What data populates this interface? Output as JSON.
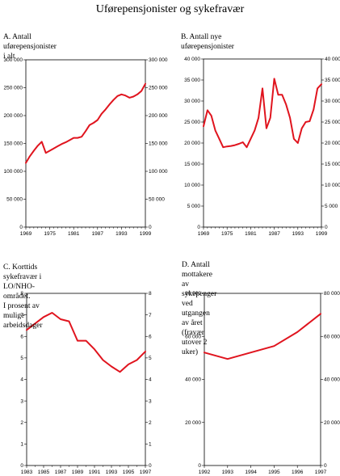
{
  "page": {
    "title": "Uførepensjonister og sykefravær"
  },
  "chart_data": [
    {
      "id": "A",
      "type": "line",
      "title": "A.  Antall uførepensjonister i alt",
      "color": "#e0141e",
      "ylim": [
        0,
        300000
      ],
      "yticks": [
        0,
        50000,
        100000,
        150000,
        200000,
        250000,
        300000
      ],
      "ytick_labels": [
        "0",
        "50 000",
        "100 000",
        "150 000",
        "200 000",
        "250 000",
        "300 000"
      ],
      "xlim": [
        1969,
        1999
      ],
      "xticks": [
        1969,
        1975,
        1981,
        1987,
        1993,
        1999
      ],
      "xtick_labels": [
        "1969",
        "1975",
        "1981",
        "1987",
        "1993",
        "1999"
      ],
      "x": [
        1969,
        1970,
        1971,
        1972,
        1973,
        1974,
        1975,
        1976,
        1977,
        1978,
        1979,
        1980,
        1981,
        1982,
        1983,
        1984,
        1985,
        1986,
        1987,
        1988,
        1989,
        1990,
        1991,
        1992,
        1993,
        1994,
        1995,
        1996,
        1997,
        1998,
        1999
      ],
      "values": [
        115000,
        127000,
        137000,
        146000,
        153000,
        133000,
        137000,
        141000,
        145000,
        149000,
        152000,
        156000,
        160000,
        160000,
        162000,
        172000,
        183000,
        187000,
        192000,
        203000,
        211000,
        220000,
        228000,
        235000,
        238000,
        236000,
        232000,
        234000,
        238000,
        244000,
        257000
      ]
    },
    {
      "id": "B",
      "type": "line",
      "title": "B.  Antall nye uførepensjonister",
      "color": "#e0141e",
      "ylim": [
        0,
        40000
      ],
      "yticks": [
        0,
        5000,
        10000,
        15000,
        20000,
        25000,
        30000,
        35000,
        40000
      ],
      "ytick_labels": [
        "0",
        "5 000",
        "10 000",
        "15 000",
        "20 000",
        "25 000",
        "30 000",
        "35 000",
        "40 000"
      ],
      "xlim": [
        1969,
        1999
      ],
      "xticks": [
        1969,
        1975,
        1981,
        1987,
        1993,
        1999
      ],
      "xtick_labels": [
        "1969",
        "1975",
        "1981",
        "1987",
        "1993",
        "1999"
      ],
      "x": [
        1969,
        1970,
        1971,
        1972,
        1973,
        1974,
        1975,
        1976,
        1977,
        1978,
        1979,
        1980,
        1981,
        1982,
        1983,
        1984,
        1985,
        1986,
        1987,
        1988,
        1989,
        1990,
        1991,
        1992,
        1993,
        1994,
        1995,
        1996,
        1997,
        1998,
        1999
      ],
      "values": [
        24000,
        27800,
        26500,
        23000,
        21000,
        19000,
        19200,
        19300,
        19500,
        19800,
        20200,
        19000,
        21000,
        23000,
        26000,
        33000,
        23500,
        26000,
        35300,
        31500,
        31500,
        29200,
        26000,
        21000,
        20000,
        23500,
        25000,
        25200,
        28000,
        33000,
        34000
      ]
    },
    {
      "id": "C",
      "type": "line",
      "title": "C.  Korttids sykefravær i LO/NHO-området.\n     I prosent av mulige arbeidsdager",
      "color": "#e0141e",
      "ylim": [
        0,
        8
      ],
      "yticks": [
        0,
        1,
        2,
        3,
        4,
        5,
        6,
        7,
        8
      ],
      "ytick_labels": [
        "0",
        "1",
        "2",
        "3",
        "4",
        "5",
        "6",
        "7",
        "8"
      ],
      "xlim": [
        1983,
        1997
      ],
      "xticks": [
        1983,
        1985,
        1987,
        1989,
        1991,
        1993,
        1995,
        1997
      ],
      "xtick_labels": [
        "1983",
        "1985",
        "1987",
        "1989",
        "1991",
        "1993",
        "1995",
        "1997"
      ],
      "x": [
        1983,
        1984,
        1985,
        1986,
        1987,
        1988,
        1989,
        1990,
        1991,
        1992,
        1993,
        1994,
        1995,
        1996,
        1997
      ],
      "values": [
        6.3,
        6.6,
        6.9,
        7.1,
        6.8,
        6.7,
        5.8,
        5.8,
        5.4,
        4.9,
        4.6,
        4.35,
        4.7,
        4.9,
        5.3
      ]
    },
    {
      "id": "D",
      "type": "line",
      "title": "D.  Antall mottakere av sykepenger ved\n     utgangen av året (fravær utover 2 uker)",
      "color": "#e0141e",
      "ylim": [
        0,
        80000
      ],
      "yticks": [
        0,
        20000,
        40000,
        60000,
        80000
      ],
      "ytick_labels": [
        "0",
        "20 000",
        "40 000",
        "60 000",
        "80 000"
      ],
      "xlim": [
        1992,
        1997
      ],
      "xticks": [
        1992,
        1993,
        1994,
        1995,
        1996,
        1997
      ],
      "xtick_labels": [
        "1992",
        "1993",
        "1994",
        "1995",
        "1996",
        "1997"
      ],
      "x": [
        1992,
        1993,
        1994,
        1995,
        1996,
        1997
      ],
      "values": [
        52500,
        49500,
        52500,
        55500,
        62000,
        70500
      ]
    }
  ]
}
